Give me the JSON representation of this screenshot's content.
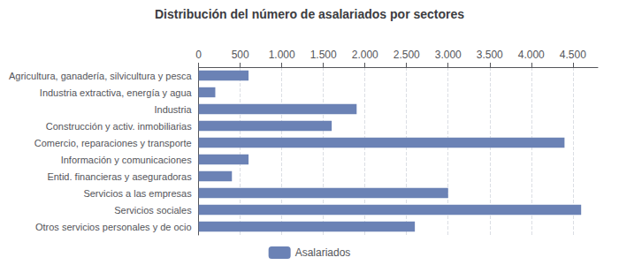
{
  "chart_data": {
    "type": "bar",
    "orientation": "horizontal",
    "title": "Distribución del número de asalariados por sectores",
    "categories": [
      "Otros servicios personales y de ocio",
      "Servicios sociales",
      "Servicios a las empresas",
      "Entid. financieras y aseguradoras",
      "Información y comunicaciones",
      "Comercio, reparaciones y transporte",
      "Construcción y activ. inmobiliarias",
      "Industria",
      "Industria extractiva, energía y agua",
      "Agricultura, ganadería, silvicultura y pesca"
    ],
    "series": [
      {
        "name": "Asalariados",
        "color": "#6b82b5",
        "values": [
          2600,
          4600,
          3000,
          400,
          600,
          4400,
          1600,
          1900,
          200,
          600
        ]
      }
    ],
    "xlim": [
      0,
      4800
    ],
    "xticks": [
      0,
      500,
      {
        "value": 1000,
        "label": "1.000"
      },
      {
        "value": 1500,
        "label": "1.500"
      },
      {
        "value": 2000,
        "label": "2.000"
      },
      {
        "value": 2500,
        "label": "2.500"
      },
      {
        "value": 3000,
        "label": "3.000"
      },
      {
        "value": 3500,
        "label": "3.500"
      },
      {
        "value": 4000,
        "label": "4.000"
      },
      {
        "value": 4500,
        "label": "4.500"
      }
    ],
    "grid": true,
    "legend": "bottom"
  }
}
